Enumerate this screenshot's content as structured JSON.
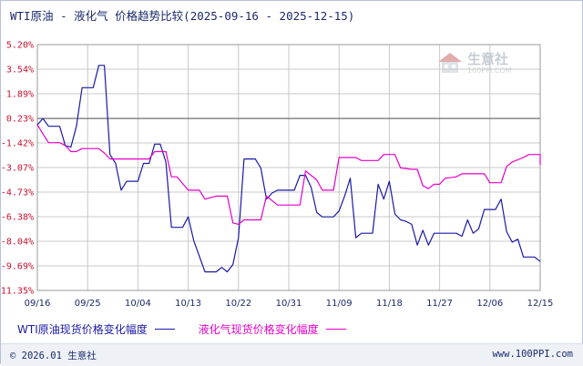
{
  "title": "WTI原油 - 液化气 价格趋势比较(2025-09-16 - 2025-12-15)",
  "watermark": {
    "brand": "生意社",
    "url": "100PPI.COM"
  },
  "footer": {
    "copyright": "© 2026.01 生意社",
    "url": "www.100PPI.com"
  },
  "colors": {
    "wti": "#1a1aa6",
    "lpg": "#e600c8",
    "axis_label": "#c8102e",
    "grid": "#c8c8c8"
  },
  "chart_data": {
    "type": "line",
    "title": "WTI原油 - 液化气 价格趋势比较(2025-09-16 - 2025-12-15)",
    "x_ticks": [
      "09/16",
      "09/25",
      "10/04",
      "10/13",
      "10/22",
      "10/31",
      "11/09",
      "11/18",
      "11/27",
      "12/06",
      "12/15"
    ],
    "y_ticks": [
      "5.20%",
      "3.54%",
      "1.89%",
      "0.23%",
      "-1.42%",
      "-3.07%",
      "-4.73%",
      "-6.38%",
      "-8.04%",
      "-9.69%",
      "-11.35%"
    ],
    "ylim": [
      -11.35,
      5.2
    ],
    "xlim": [
      0,
      90
    ],
    "grid": true,
    "legend_position": "bottom",
    "series": [
      {
        "name": "WTI原油现货价格变化幅度",
        "color": "#1a1aa6",
        "points": [
          [
            0,
            -0.2
          ],
          [
            1,
            0.23
          ],
          [
            2,
            -0.3
          ],
          [
            4,
            -0.3
          ],
          [
            5,
            -1.6
          ],
          [
            6,
            -1.7
          ],
          [
            7,
            -0.3
          ],
          [
            8,
            2.3
          ],
          [
            10,
            2.3
          ],
          [
            11,
            3.8
          ],
          [
            12,
            3.8
          ],
          [
            13,
            -2.2
          ],
          [
            14,
            -2.8
          ],
          [
            15,
            -4.6
          ],
          [
            16,
            -4.0
          ],
          [
            18,
            -4.0
          ],
          [
            19,
            -2.8
          ],
          [
            20,
            -2.8
          ],
          [
            21,
            -1.5
          ],
          [
            22,
            -1.5
          ],
          [
            23,
            -2.7
          ],
          [
            24,
            -7.1
          ],
          [
            26,
            -7.1
          ],
          [
            27,
            -6.4
          ],
          [
            28,
            -8.0
          ],
          [
            30,
            -10.1
          ],
          [
            32,
            -10.1
          ],
          [
            33,
            -9.8
          ],
          [
            34,
            -10.1
          ],
          [
            35,
            -9.6
          ],
          [
            36,
            -7.8
          ],
          [
            37,
            -2.5
          ],
          [
            39,
            -2.5
          ],
          [
            40,
            -3.1
          ],
          [
            41,
            -5.2
          ],
          [
            42,
            -4.8
          ],
          [
            43,
            -4.6
          ],
          [
            46,
            -4.6
          ],
          [
            47,
            -3.6
          ],
          [
            48,
            -3.6
          ],
          [
            49,
            -4.4
          ],
          [
            50,
            -6.1
          ],
          [
            51,
            -6.4
          ],
          [
            53,
            -6.4
          ],
          [
            54,
            -6.0
          ],
          [
            55,
            -5.0
          ],
          [
            56,
            -3.8
          ],
          [
            57,
            -7.8
          ],
          [
            58,
            -7.5
          ],
          [
            60,
            -7.5
          ],
          [
            61,
            -4.2
          ],
          [
            62,
            -5.2
          ],
          [
            63,
            -4.0
          ],
          [
            64,
            -6.2
          ],
          [
            65,
            -6.6
          ],
          [
            66,
            -6.7
          ],
          [
            67,
            -6.9
          ],
          [
            68,
            -8.3
          ],
          [
            69,
            -7.3
          ],
          [
            70,
            -8.3
          ],
          [
            71,
            -7.5
          ],
          [
            75,
            -7.5
          ],
          [
            76,
            -7.7
          ],
          [
            77,
            -6.6
          ],
          [
            78,
            -7.5
          ],
          [
            79,
            -7.2
          ],
          [
            80,
            -5.9
          ],
          [
            82,
            -5.9
          ],
          [
            83,
            -5.2
          ],
          [
            84,
            -7.4
          ],
          [
            85,
            -8.1
          ],
          [
            86,
            -7.9
          ],
          [
            87,
            -9.1
          ],
          [
            89,
            -9.1
          ],
          [
            90,
            -9.4
          ]
        ]
      },
      {
        "name": "液化气现货价格变化幅度",
        "color": "#e600c8",
        "points": [
          [
            0,
            -0.2
          ],
          [
            1,
            -0.8
          ],
          [
            2,
            -1.4
          ],
          [
            4,
            -1.4
          ],
          [
            5,
            -1.6
          ],
          [
            6,
            -2.0
          ],
          [
            7,
            -2.0
          ],
          [
            8,
            -1.8
          ],
          [
            11,
            -1.8
          ],
          [
            12,
            -2.1
          ],
          [
            13,
            -2.5
          ],
          [
            20,
            -2.5
          ],
          [
            21,
            -2.0
          ],
          [
            23,
            -2.0
          ],
          [
            24,
            -3.7
          ],
          [
            25,
            -3.7
          ],
          [
            27,
            -4.6
          ],
          [
            29,
            -4.6
          ],
          [
            30,
            -5.2
          ],
          [
            32,
            -5.0
          ],
          [
            34,
            -5.0
          ],
          [
            35,
            -6.8
          ],
          [
            36,
            -6.9
          ],
          [
            37,
            -6.6
          ],
          [
            40,
            -6.6
          ],
          [
            41,
            -5.0
          ],
          [
            43,
            -5.6
          ],
          [
            47,
            -5.6
          ],
          [
            48,
            -3.3
          ],
          [
            49,
            -3.6
          ],
          [
            50,
            -3.9
          ],
          [
            51,
            -4.6
          ],
          [
            53,
            -4.6
          ],
          [
            54,
            -2.4
          ],
          [
            57,
            -2.4
          ],
          [
            58,
            -2.6
          ],
          [
            61,
            -2.6
          ],
          [
            62,
            -2.2
          ],
          [
            64,
            -2.2
          ],
          [
            65,
            -3.1
          ],
          [
            67,
            -3.2
          ],
          [
            68,
            -3.2
          ],
          [
            69,
            -4.3
          ],
          [
            70,
            -4.5
          ],
          [
            71,
            -4.2
          ],
          [
            72,
            -4.2
          ],
          [
            73,
            -3.8
          ],
          [
            75,
            -3.7
          ],
          [
            76,
            -3.5
          ],
          [
            80,
            -3.5
          ],
          [
            81,
            -4.1
          ],
          [
            83,
            -4.1
          ],
          [
            84,
            -3.0
          ],
          [
            85,
            -2.7
          ],
          [
            87,
            -2.4
          ],
          [
            88,
            -2.2
          ],
          [
            90,
            -2.2
          ],
          [
            91,
            -2.9
          ]
        ]
      }
    ]
  }
}
